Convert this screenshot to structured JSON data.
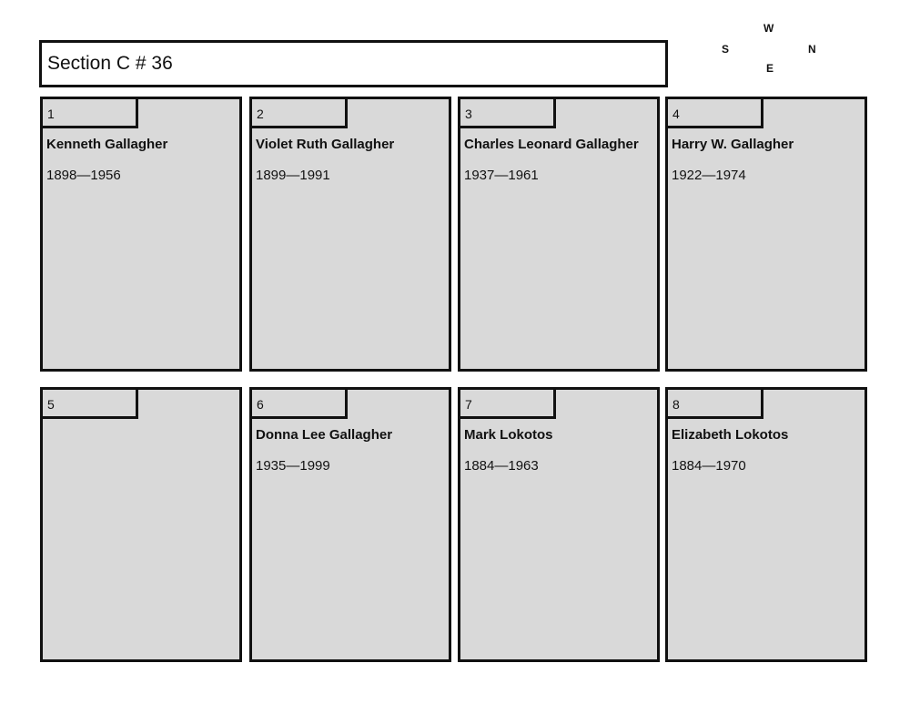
{
  "header": {
    "title": "Section C # 36"
  },
  "compass": {
    "w": "W",
    "s": "S",
    "n": "N",
    "e": "E"
  },
  "plots": [
    {
      "number": "1",
      "name": "Kenneth Gallagher",
      "dates": "1898—1956"
    },
    {
      "number": "2",
      "name": "Violet Ruth Gallagher",
      "dates": "1899—1991"
    },
    {
      "number": "3",
      "name": "Charles Leonard Gallagher",
      "dates": "1937—1961"
    },
    {
      "number": "4",
      "name": "Harry W. Gallagher",
      "dates": "1922—1974"
    },
    {
      "number": "5",
      "name": "",
      "dates": ""
    },
    {
      "number": "6",
      "name": "Donna Lee Gallagher",
      "dates": "1935—1999"
    },
    {
      "number": "7",
      "name": "Mark Lokotos",
      "dates": "1884—1963"
    },
    {
      "number": "8",
      "name": "Elizabeth Lokotos",
      "dates": "1884—1970"
    }
  ]
}
